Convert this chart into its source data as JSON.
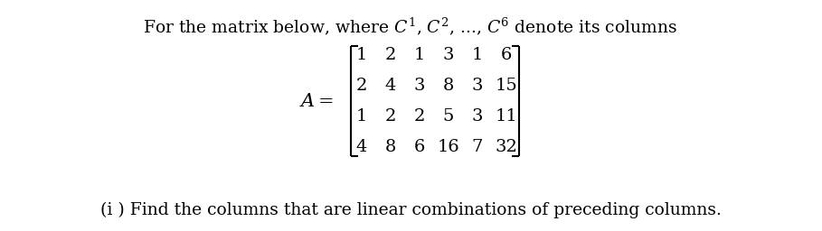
{
  "matrix": [
    [
      1,
      2,
      1,
      3,
      1,
      6
    ],
    [
      2,
      4,
      3,
      8,
      3,
      15
    ],
    [
      1,
      2,
      2,
      5,
      3,
      11
    ],
    [
      4,
      8,
      6,
      16,
      7,
      32
    ]
  ],
  "question": "(i ) Find the columns that are linear combinations of preceding columns.",
  "bg_color": "#ffffff",
  "text_color": "#000000",
  "fontsize": 13.5,
  "matrix_fontsize": 14
}
